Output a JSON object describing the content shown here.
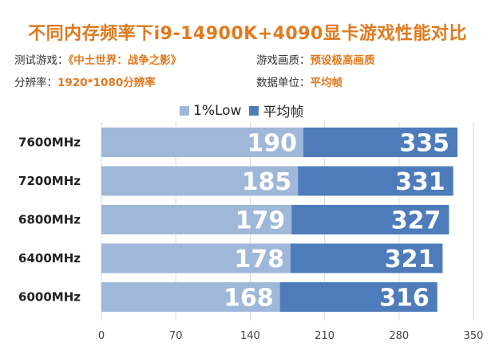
{
  "title": "不同内存频率下i9-14900K+4090显卡游戏性能对比",
  "meta": [
    {
      "key": "测试游戏：",
      "value": "《中土世界：战争之影》"
    },
    {
      "key": "游戏画质：",
      "value": "预设极高画质"
    },
    {
      "key": "分辨率：",
      "value": "1920*1080分辨率"
    },
    {
      "key": "数据单位：",
      "value": "平均帧"
    }
  ],
  "colors": {
    "title": "#e07a1f",
    "low": "#9fb7d9",
    "avg": "#4e7cbb",
    "grid": "#d9d9d9"
  },
  "chart_data": {
    "type": "bar",
    "orientation": "horizontal",
    "categories": [
      "7600MHz",
      "7200MHz",
      "6800MHz",
      "6400MHz",
      "6000MHz"
    ],
    "series": [
      {
        "name": "1%Low",
        "values": [
          190,
          185,
          179,
          178,
          168
        ]
      },
      {
        "name": "平均帧",
        "values": [
          335,
          331,
          327,
          321,
          316
        ]
      }
    ],
    "xlim": [
      0,
      350
    ],
    "xticks": [
      0,
      70,
      140,
      210,
      280,
      350
    ],
    "grid": true,
    "legend": "top"
  }
}
